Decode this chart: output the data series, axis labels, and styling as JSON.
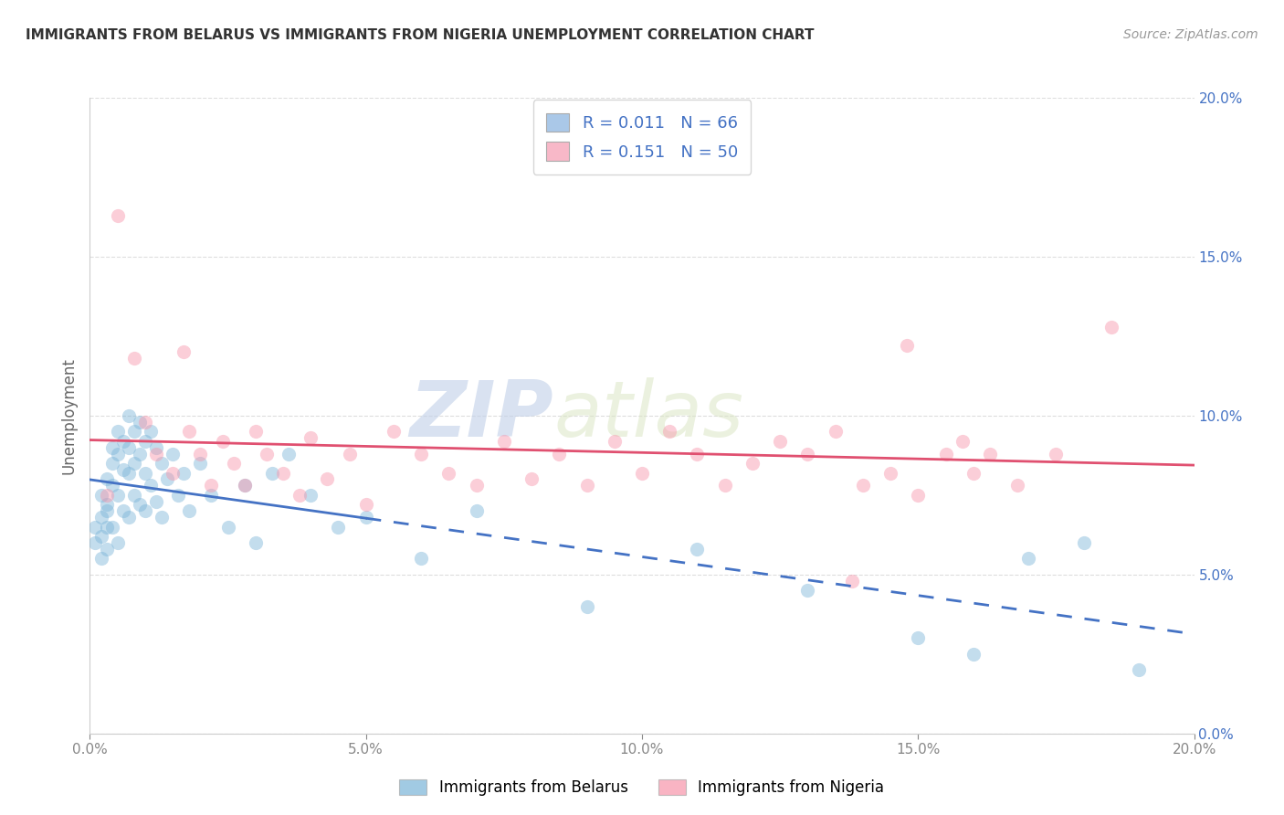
{
  "title": "IMMIGRANTS FROM BELARUS VS IMMIGRANTS FROM NIGERIA UNEMPLOYMENT CORRELATION CHART",
  "source": "Source: ZipAtlas.com",
  "ylabel": "Unemployment",
  "xlim": [
    0.0,
    0.2
  ],
  "ylim": [
    0.0,
    0.2
  ],
  "watermark_zip": "ZIP",
  "watermark_atlas": "atlas",
  "belarus_color": "#7ab4d8",
  "nigeria_color": "#f794aa",
  "belarus_line_color": "#4472c4",
  "nigeria_line_color": "#e05070",
  "legend_patch1": "#aac8e8",
  "legend_patch2": "#f8b8c8",
  "legend_R1": "R = 0.011",
  "legend_N1": "N = 66",
  "legend_R2": "R = 0.151",
  "legend_N2": "N = 50",
  "background_color": "#ffffff",
  "grid_color": "#cccccc",
  "title_color": "#333333",
  "source_color": "#999999",
  "scatter_alpha": 0.45,
  "scatter_size": 120,
  "belarus_x": [
    0.001,
    0.001,
    0.002,
    0.002,
    0.002,
    0.002,
    0.003,
    0.003,
    0.003,
    0.003,
    0.003,
    0.004,
    0.004,
    0.004,
    0.004,
    0.005,
    0.005,
    0.005,
    0.005,
    0.006,
    0.006,
    0.006,
    0.007,
    0.007,
    0.007,
    0.007,
    0.008,
    0.008,
    0.008,
    0.009,
    0.009,
    0.009,
    0.01,
    0.01,
    0.01,
    0.011,
    0.011,
    0.012,
    0.012,
    0.013,
    0.013,
    0.014,
    0.015,
    0.016,
    0.017,
    0.018,
    0.02,
    0.022,
    0.025,
    0.028,
    0.03,
    0.033,
    0.036,
    0.04,
    0.045,
    0.05,
    0.06,
    0.07,
    0.09,
    0.11,
    0.13,
    0.15,
    0.16,
    0.17,
    0.18,
    0.19
  ],
  "belarus_y": [
    0.065,
    0.06,
    0.075,
    0.068,
    0.055,
    0.062,
    0.08,
    0.072,
    0.065,
    0.058,
    0.07,
    0.085,
    0.09,
    0.078,
    0.065,
    0.095,
    0.088,
    0.075,
    0.06,
    0.092,
    0.083,
    0.07,
    0.1,
    0.09,
    0.082,
    0.068,
    0.095,
    0.085,
    0.075,
    0.098,
    0.088,
    0.072,
    0.092,
    0.082,
    0.07,
    0.095,
    0.078,
    0.09,
    0.073,
    0.085,
    0.068,
    0.08,
    0.088,
    0.075,
    0.082,
    0.07,
    0.085,
    0.075,
    0.065,
    0.078,
    0.06,
    0.082,
    0.088,
    0.075,
    0.065,
    0.068,
    0.055,
    0.07,
    0.04,
    0.058,
    0.045,
    0.03,
    0.025,
    0.055,
    0.06,
    0.02
  ],
  "nigeria_x": [
    0.003,
    0.005,
    0.008,
    0.01,
    0.012,
    0.015,
    0.017,
    0.018,
    0.02,
    0.022,
    0.024,
    0.026,
    0.028,
    0.03,
    0.032,
    0.035,
    0.038,
    0.04,
    0.043,
    0.047,
    0.05,
    0.055,
    0.06,
    0.065,
    0.07,
    0.075,
    0.08,
    0.085,
    0.09,
    0.095,
    0.1,
    0.105,
    0.11,
    0.115,
    0.12,
    0.125,
    0.13,
    0.135,
    0.138,
    0.14,
    0.145,
    0.148,
    0.15,
    0.155,
    0.158,
    0.16,
    0.163,
    0.168,
    0.175,
    0.185
  ],
  "nigeria_y": [
    0.075,
    0.163,
    0.118,
    0.098,
    0.088,
    0.082,
    0.12,
    0.095,
    0.088,
    0.078,
    0.092,
    0.085,
    0.078,
    0.095,
    0.088,
    0.082,
    0.075,
    0.093,
    0.08,
    0.088,
    0.072,
    0.095,
    0.088,
    0.082,
    0.078,
    0.092,
    0.08,
    0.088,
    0.078,
    0.092,
    0.082,
    0.095,
    0.088,
    0.078,
    0.085,
    0.092,
    0.088,
    0.095,
    0.048,
    0.078,
    0.082,
    0.122,
    0.075,
    0.088,
    0.092,
    0.082,
    0.088,
    0.078,
    0.088,
    0.128
  ],
  "xticks": [
    0.0,
    0.05,
    0.1,
    0.15,
    0.2
  ],
  "yticks": [
    0.0,
    0.05,
    0.1,
    0.15,
    0.2
  ],
  "xtick_labels": [
    "0.0%",
    "5.0%",
    "10.0%",
    "15.0%",
    "20.0%"
  ],
  "ytick_labels": [
    "0.0%",
    "5.0%",
    "10.0%",
    "15.0%",
    "20.0%"
  ]
}
